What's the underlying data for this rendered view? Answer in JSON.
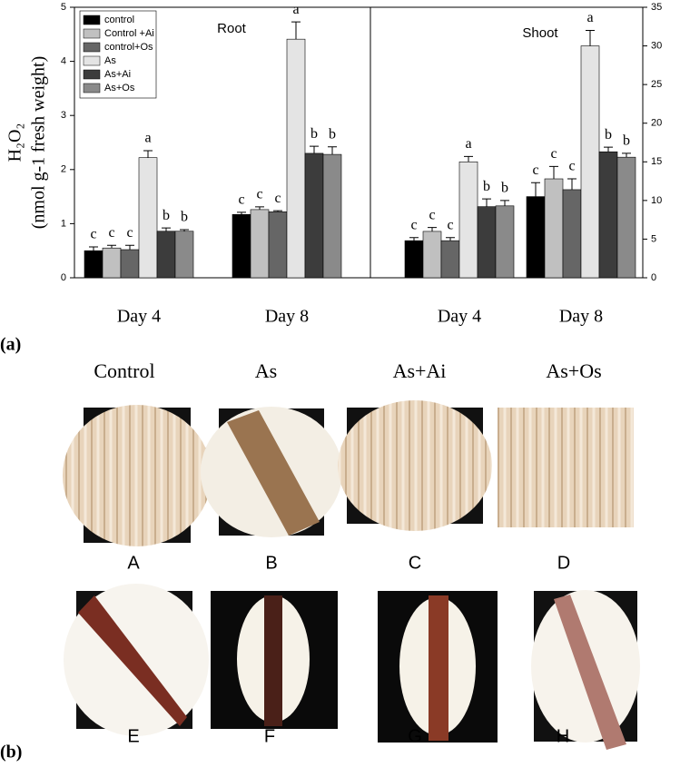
{
  "chart_data": [
    {
      "type": "bar",
      "title": "Root",
      "ylabel": [
        "H₂O₂",
        "(nmol g-1 fresh weight)"
      ],
      "categories": [
        "Day 4",
        "Day 8"
      ],
      "ylim": [
        0,
        5
      ],
      "yticks": [
        0,
        1,
        2,
        3,
        4,
        5
      ],
      "legend": "upper left",
      "series": [
        {
          "name": "control",
          "color": "#000000",
          "values": [
            0.5,
            1.17
          ],
          "errors": [
            0.07,
            0.04
          ],
          "letters": [
            "c",
            "c"
          ]
        },
        {
          "name": "Control +Ai",
          "color": "#c0c0c0",
          "values": [
            0.55,
            1.26
          ],
          "errors": [
            0.05,
            0.05
          ],
          "letters": [
            "c",
            "c"
          ]
        },
        {
          "name": "control+Os",
          "color": "#666666",
          "values": [
            0.52,
            1.22
          ],
          "errors": [
            0.08,
            0.02
          ],
          "letters": [
            "c",
            "c"
          ]
        },
        {
          "name": "As",
          "color": "#e4e4e4",
          "values": [
            2.22,
            4.41
          ],
          "errors": [
            0.13,
            0.32
          ],
          "letters": [
            "a",
            "a"
          ]
        },
        {
          "name": "As+Ai",
          "color": "#3c3c3c",
          "values": [
            0.86,
            2.3
          ],
          "errors": [
            0.06,
            0.13
          ],
          "letters": [
            "b",
            "b"
          ]
        },
        {
          "name": "As+Os",
          "color": "#8a8a8a",
          "values": [
            0.86,
            2.28
          ],
          "errors": [
            0.03,
            0.14
          ],
          "letters": [
            "b",
            "b"
          ]
        }
      ]
    },
    {
      "type": "bar",
      "title": "Shoot",
      "categories": [
        "Day 4",
        "Day 8"
      ],
      "ylim": [
        0,
        35
      ],
      "yticks": [
        0,
        5,
        10,
        15,
        20,
        25,
        30,
        35
      ],
      "yaxis": "right",
      "series": [
        {
          "color": "#000000",
          "values": [
            4.8,
            10.5
          ],
          "errors": [
            0.4,
            1.8
          ],
          "letters": [
            "c",
            "c"
          ]
        },
        {
          "color": "#c0c0c0",
          "values": [
            6.0,
            12.8
          ],
          "errors": [
            0.5,
            1.6
          ],
          "letters": [
            "c",
            "c"
          ]
        },
        {
          "color": "#666666",
          "values": [
            4.8,
            11.4
          ],
          "errors": [
            0.4,
            1.4
          ],
          "letters": [
            "c",
            "c"
          ]
        },
        {
          "color": "#e4e4e4",
          "values": [
            15.0,
            30.0
          ],
          "errors": [
            0.7,
            2.0
          ],
          "letters": [
            "a",
            "a"
          ]
        },
        {
          "color": "#3c3c3c",
          "values": [
            9.2,
            16.3
          ],
          "errors": [
            1.0,
            0.6
          ],
          "letters": [
            "b",
            "b"
          ]
        },
        {
          "color": "#8a8a8a",
          "values": [
            9.3,
            15.6
          ],
          "errors": [
            0.7,
            0.5
          ],
          "letters": [
            "b",
            "b"
          ]
        }
      ]
    }
  ],
  "panel_a": {
    "label": "(a)"
  },
  "panel_b": {
    "label": "(b)",
    "columns": [
      "Control",
      "As",
      "As+Ai",
      "As+Os"
    ],
    "images": [
      "A",
      "B",
      "C",
      "D",
      "E",
      "F",
      "G",
      "H"
    ]
  }
}
